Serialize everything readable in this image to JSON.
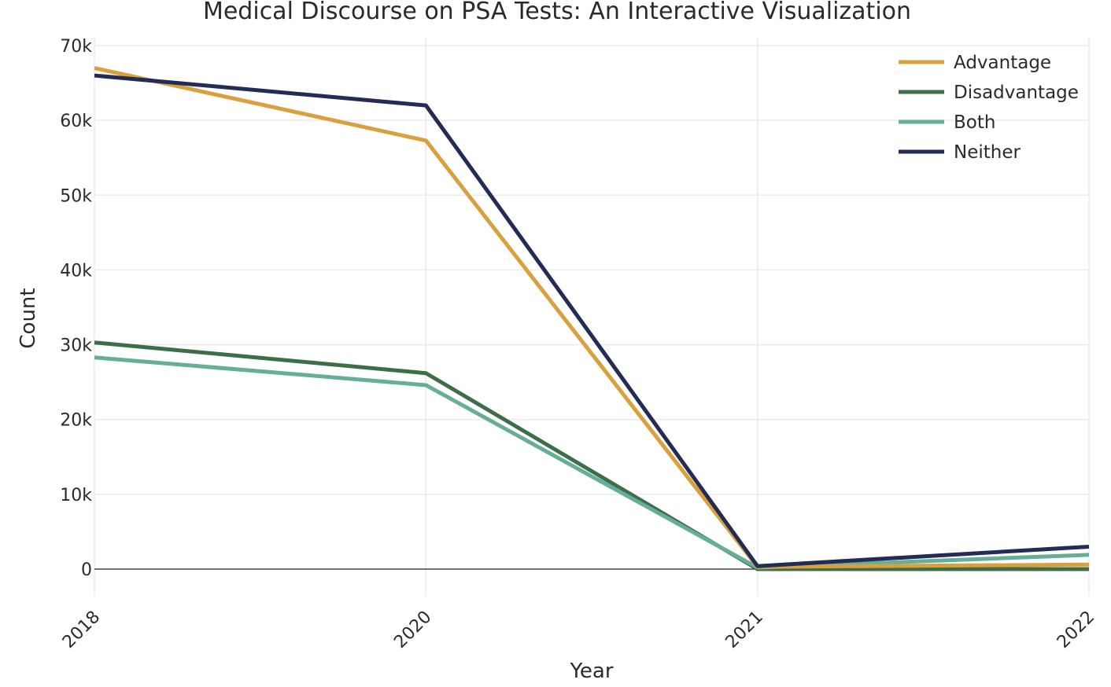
{
  "chart_data": {
    "type": "line",
    "title": "Medical Discourse on PSA Tests: An Interactive Visualization",
    "xlabel": "Year",
    "ylabel": "Count",
    "categories": [
      "2018",
      "2020",
      "2021",
      "2022"
    ],
    "y_ticks": [
      "0",
      "10k",
      "20k",
      "30k",
      "40k",
      "50k",
      "60k",
      "70k"
    ],
    "ylim": [
      -3500,
      70000
    ],
    "grid": true,
    "legend_position": "top-right",
    "series": [
      {
        "name": "Advantage",
        "color": "#DAA03D",
        "values": [
          67000,
          57300,
          300,
          600
        ]
      },
      {
        "name": "Disadvantage",
        "color": "#3E6E47",
        "values": [
          30300,
          26200,
          0,
          0
        ]
      },
      {
        "name": "Both",
        "color": "#67AE98",
        "values": [
          28300,
          24600,
          200,
          1900
        ]
      },
      {
        "name": "Neither",
        "color": "#232C54",
        "values": [
          66000,
          62000,
          400,
          3000
        ]
      }
    ]
  }
}
